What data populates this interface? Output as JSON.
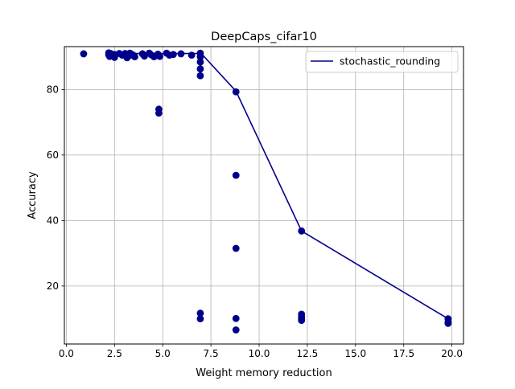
{
  "chart_data": {
    "type": "scatter",
    "title": "DeepCaps_cifar10",
    "xlabel": "Weight memory reduction",
    "ylabel": "Accuracy",
    "xlim": [
      -0.1,
      20.6
    ],
    "ylim": [
      2.3,
      93.1
    ],
    "xticks": [
      0.0,
      2.5,
      5.0,
      7.5,
      10.0,
      12.5,
      15.0,
      17.5,
      20.0
    ],
    "xtick_labels": [
      "0.0",
      "2.5",
      "5.0",
      "7.5",
      "10.0",
      "12.5",
      "15.0",
      "17.5",
      "20.0"
    ],
    "yticks": [
      20,
      40,
      60,
      80
    ],
    "ytick_labels": [
      "20",
      "40",
      "60",
      "80"
    ],
    "grid": true,
    "legend": {
      "position": "top-right",
      "entries": [
        "stochastic_rounding"
      ]
    },
    "line_series": {
      "name": "stochastic_rounding",
      "color": "#00008b",
      "x": [
        2.2,
        2.5,
        3.0,
        3.5,
        4.0,
        4.5,
        5.0,
        5.5,
        6.0,
        6.5,
        7.0,
        8.8,
        12.2,
        19.8
      ],
      "y": [
        91.0,
        91.0,
        91.0,
        91.0,
        91.0,
        91.0,
        91.0,
        91.0,
        91.0,
        91.0,
        91.0,
        79.5,
        36.8,
        10.0
      ]
    },
    "scatter_series": {
      "color": "#00008b",
      "points": [
        [
          0.9,
          90.9
        ],
        [
          2.2,
          91.2
        ],
        [
          2.2,
          90.6
        ],
        [
          2.25,
          90.1
        ],
        [
          2.3,
          91.0
        ],
        [
          2.4,
          90.4
        ],
        [
          2.5,
          89.8
        ],
        [
          2.5,
          90.7
        ],
        [
          2.75,
          91.0
        ],
        [
          2.9,
          90.5
        ],
        [
          3.05,
          91.0
        ],
        [
          3.15,
          89.7
        ],
        [
          3.25,
          90.3
        ],
        [
          3.3,
          91.1
        ],
        [
          3.45,
          90.6
        ],
        [
          3.55,
          90.0
        ],
        [
          3.95,
          90.9
        ],
        [
          4.05,
          90.2
        ],
        [
          4.3,
          91.1
        ],
        [
          4.4,
          90.6
        ],
        [
          4.55,
          90.0
        ],
        [
          4.75,
          90.8
        ],
        [
          4.85,
          90.1
        ],
        [
          5.2,
          91.1
        ],
        [
          5.35,
          90.5
        ],
        [
          5.55,
          90.7
        ],
        [
          5.95,
          90.9
        ],
        [
          6.5,
          90.5
        ],
        [
          4.8,
          74.0
        ],
        [
          4.8,
          72.8
        ],
        [
          6.95,
          91.1
        ],
        [
          6.95,
          90.0
        ],
        [
          6.95,
          88.4
        ],
        [
          6.95,
          86.3
        ],
        [
          6.95,
          84.2
        ],
        [
          6.95,
          11.7
        ],
        [
          6.95,
          10.0
        ],
        [
          8.8,
          79.3
        ],
        [
          8.8,
          53.8
        ],
        [
          8.8,
          31.5
        ],
        [
          8.8,
          10.1
        ],
        [
          8.8,
          6.6
        ],
        [
          12.2,
          36.8
        ],
        [
          12.2,
          11.4
        ],
        [
          12.2,
          10.6
        ],
        [
          12.2,
          9.9
        ],
        [
          12.2,
          9.5
        ],
        [
          19.8,
          10.0
        ],
        [
          19.8,
          9.0
        ],
        [
          19.8,
          8.6
        ]
      ]
    }
  }
}
